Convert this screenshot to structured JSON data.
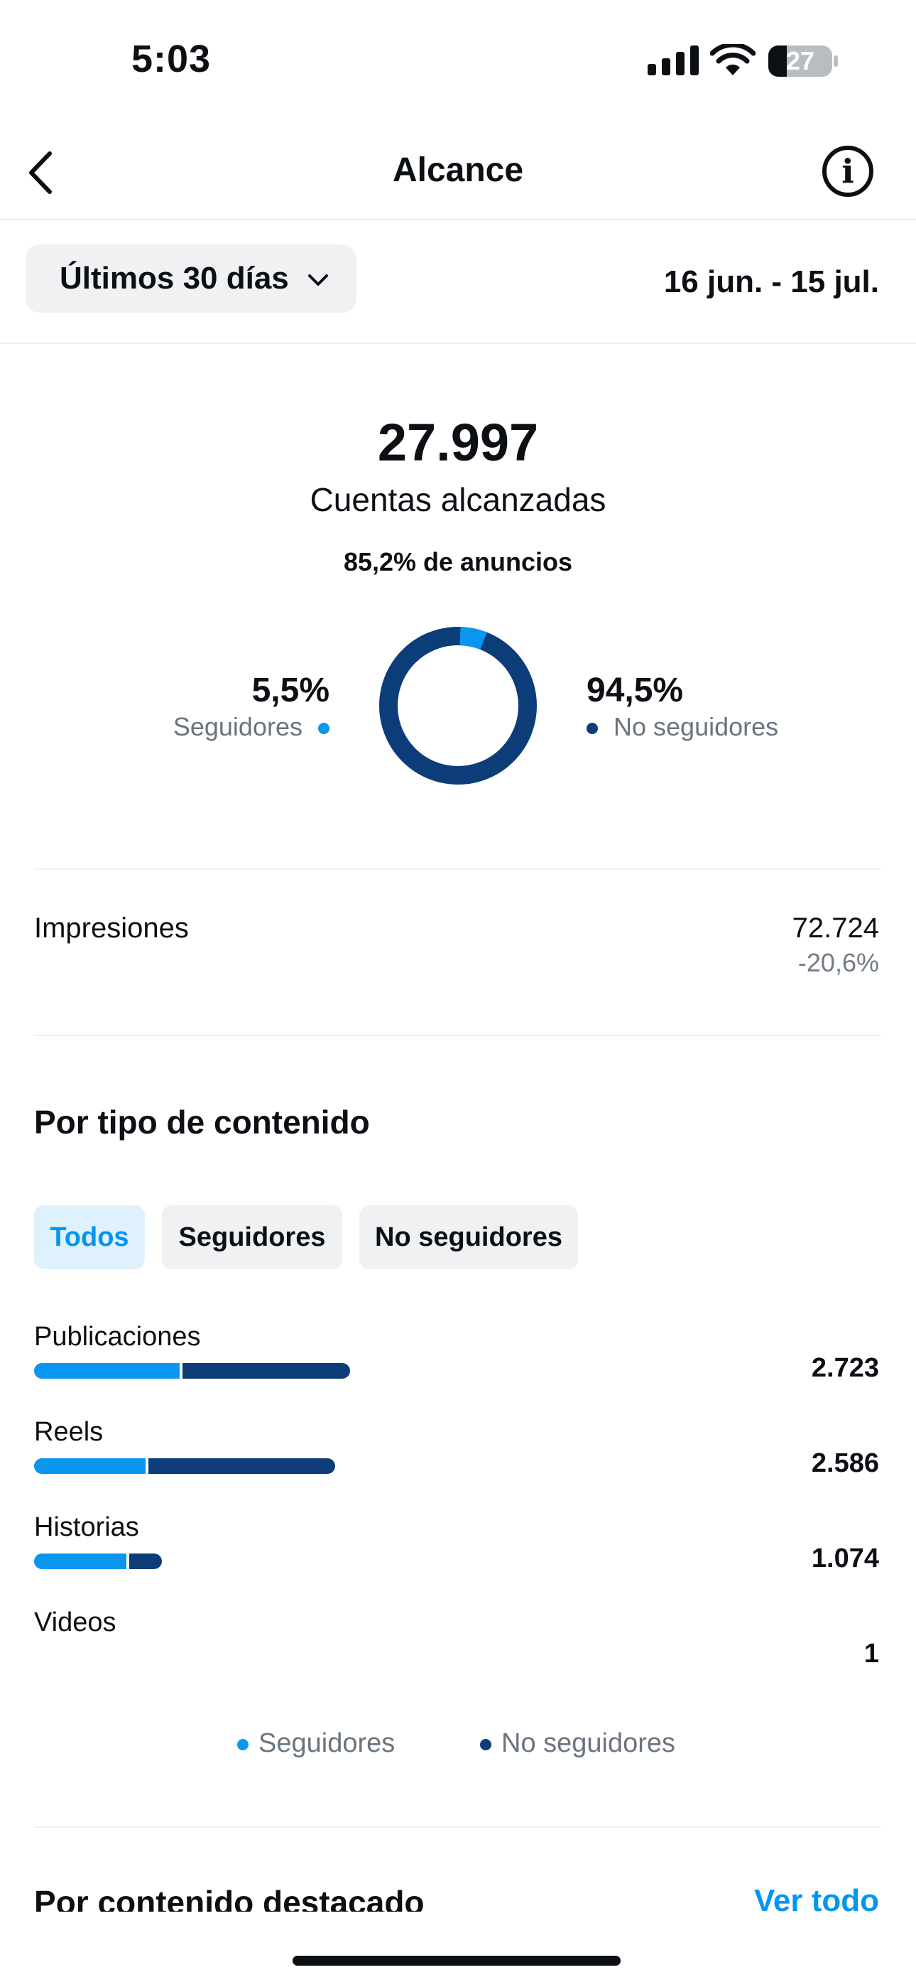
{
  "status": {
    "time": "5:03",
    "battery": "27"
  },
  "header": {
    "title": "Alcance",
    "icons": [
      "back-chevron-icon",
      "info-icon"
    ]
  },
  "range": {
    "label": "Últimos 30 días",
    "dates": "16 jun. - 15 jul."
  },
  "summary": {
    "value": "27.997",
    "label": "Cuentas alcanzadas",
    "ads": "85,2% de anuncios",
    "followers_pct": "5,5%",
    "followers_label": "Seguidores",
    "nonfollowers_pct": "94,5%",
    "nonfollowers_label": "No seguidores",
    "donut_followers_fraction": 0.055
  },
  "impressions": {
    "label": "Impresiones",
    "value": "72.724",
    "change": "-20,6%"
  },
  "content_type": {
    "title": "Por tipo de contenido",
    "chips": [
      "Todos",
      "Seguidores",
      "No seguidores"
    ],
    "rows": [
      {
        "label": "Publicaciones",
        "value": "2.723",
        "followers_fraction": 0.46,
        "total_fraction": 0.42
      },
      {
        "label": "Reels",
        "value": "2.586",
        "followers_fraction": 0.37,
        "total_fraction": 0.4
      },
      {
        "label": "Historias",
        "value": "1.074",
        "followers_fraction": 0.72,
        "total_fraction": 0.17
      },
      {
        "label": "Videos",
        "value": "1",
        "followers_fraction": 0,
        "total_fraction": 0
      }
    ],
    "legend": [
      "Seguidores",
      "No seguidores"
    ]
  },
  "featured": {
    "title": "Por contenido destacado",
    "see_all": "Ver todo"
  },
  "colors": {
    "followers": "#0896ef",
    "nonfollowers": "#0c3d78",
    "accent": "#0096f0"
  }
}
